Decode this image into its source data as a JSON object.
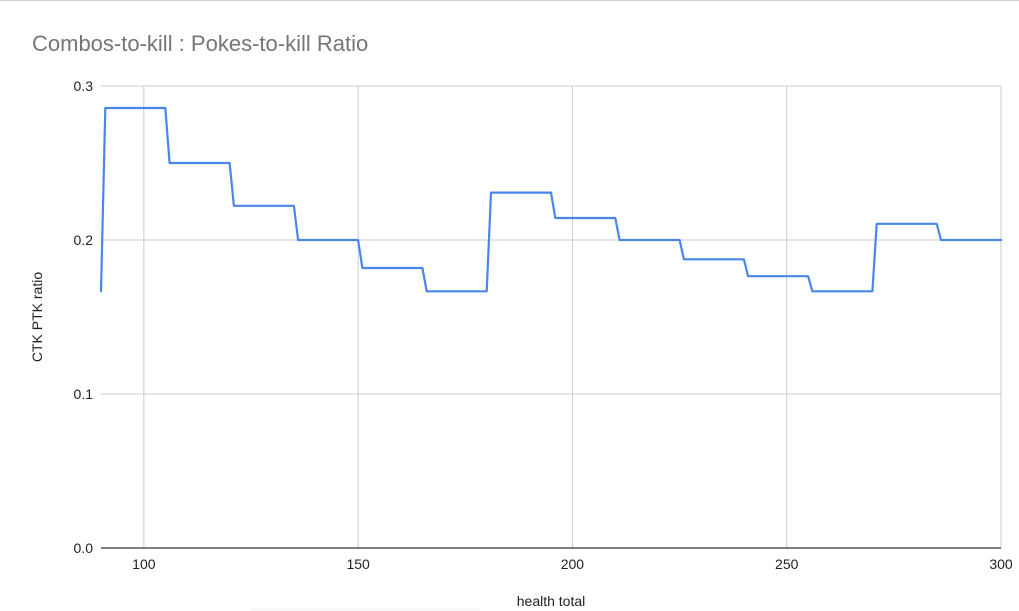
{
  "colors": {
    "line": "#4a86e8",
    "grid": "#cccccc",
    "axis": "#333333",
    "title": "#757575",
    "text": "#222222"
  },
  "chart_data": {
    "type": "line",
    "title": "Combos-to-kill : Pokes-to-kill Ratio",
    "xlabel": "health total",
    "ylabel": "CTK PTK ratio",
    "xlim": [
      90,
      300
    ],
    "ylim": [
      0,
      0.3
    ],
    "x_ticks": [
      100,
      150,
      200,
      250,
      300
    ],
    "y_ticks": [
      0.0,
      0.1,
      0.2,
      0.3
    ],
    "x_tick_labels": [
      "100",
      "150",
      "200",
      "250",
      "300"
    ],
    "y_tick_labels": [
      "0.0",
      "0.1",
      "0.2",
      "0.3"
    ],
    "grid": true,
    "legend": "none",
    "series": [
      {
        "x": [
          90,
          91,
          105,
          106,
          120,
          121,
          135,
          136,
          150,
          151,
          165,
          166,
          180,
          181,
          195,
          196,
          210,
          211,
          225,
          226,
          240,
          241,
          255,
          256,
          270,
          271,
          285,
          286,
          300
        ],
        "values": [
          0.1667,
          0.2857,
          0.2857,
          0.25,
          0.25,
          0.2222,
          0.2222,
          0.2,
          0.2,
          0.1818,
          0.1818,
          0.1667,
          0.1667,
          0.2308,
          0.2308,
          0.2143,
          0.2143,
          0.2,
          0.2,
          0.1875,
          0.1875,
          0.1765,
          0.1765,
          0.1667,
          0.1667,
          0.2105,
          0.2105,
          0.2,
          0.2
        ]
      }
    ]
  }
}
